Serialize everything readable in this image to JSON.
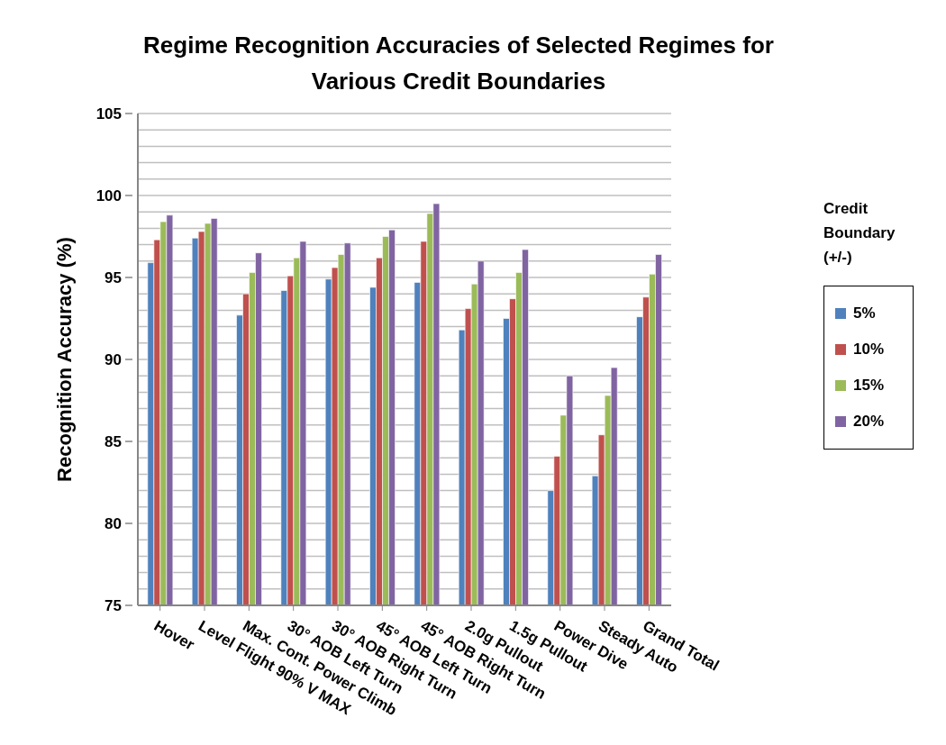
{
  "chart_data": {
    "type": "bar",
    "title": "Regime Recognition Accuracies of Selected Regimes for Various Credit Boundaries",
    "ylabel": "Recognition Accuracy (%)",
    "legend_title": "Credit Boundary (+/-)",
    "categories": [
      "Hover",
      "Level Flight 90% V MAX",
      "Max. Cont. Power Climb",
      "30° AOB Left Turn",
      "30° AOB Right Turn",
      "45° AOB Left Turn",
      "45° AOB Right Turn",
      "2.0g Pullout",
      "1.5g Pullout",
      "Power Dive",
      "Steady Auto",
      "Grand Total"
    ],
    "series": [
      {
        "name": "5%",
        "color": "#4f81bd",
        "values": [
          95.9,
          97.4,
          92.7,
          94.2,
          94.9,
          94.4,
          94.7,
          91.8,
          92.5,
          82.0,
          82.9,
          92.6
        ]
      },
      {
        "name": "10%",
        "color": "#c0504d",
        "values": [
          97.3,
          97.8,
          94.0,
          95.1,
          95.6,
          96.2,
          97.2,
          93.1,
          93.7,
          84.1,
          85.4,
          93.8
        ]
      },
      {
        "name": "15%",
        "color": "#9bbb59",
        "values": [
          98.4,
          98.3,
          95.3,
          96.2,
          96.4,
          97.5,
          98.9,
          94.6,
          95.3,
          86.6,
          87.8,
          95.2
        ]
      },
      {
        "name": "20%",
        "color": "#8064a2",
        "values": [
          98.8,
          98.6,
          96.5,
          97.2,
          97.1,
          97.9,
          99.5,
          96.0,
          96.7,
          89.0,
          89.5,
          96.4
        ]
      }
    ],
    "ylim": [
      75,
      105
    ],
    "yticks": [
      75,
      {
        "value": 76,
        "label": null
      },
      {
        "value": 77,
        "label": null
      },
      {
        "value": 78,
        "label": null
      },
      {
        "value": 79,
        "label": null
      },
      80,
      {
        "value": 81,
        "label": null
      },
      {
        "value": 82,
        "label": null
      },
      {
        "value": 83,
        "label": null
      },
      {
        "value": 84,
        "label": null
      },
      85,
      {
        "value": 86,
        "label": null
      },
      {
        "value": 87,
        "label": null
      },
      {
        "value": 88,
        "label": null
      },
      {
        "value": 89,
        "label": null
      },
      90,
      {
        "value": 91,
        "label": null
      },
      {
        "value": 92,
        "label": null
      },
      {
        "value": 93,
        "label": null
      },
      {
        "value": 94,
        "label": null
      },
      95,
      {
        "value": 96,
        "label": null
      },
      {
        "value": 97,
        "label": null
      },
      {
        "value": 98,
        "label": null
      },
      {
        "value": 99,
        "label": null
      },
      100,
      {
        "value": 101,
        "label": null
      },
      {
        "value": 102,
        "label": null
      },
      {
        "value": 103,
        "label": null
      },
      {
        "value": 104,
        "label": null
      },
      105
    ],
    "grid": "y",
    "legend": "right"
  }
}
